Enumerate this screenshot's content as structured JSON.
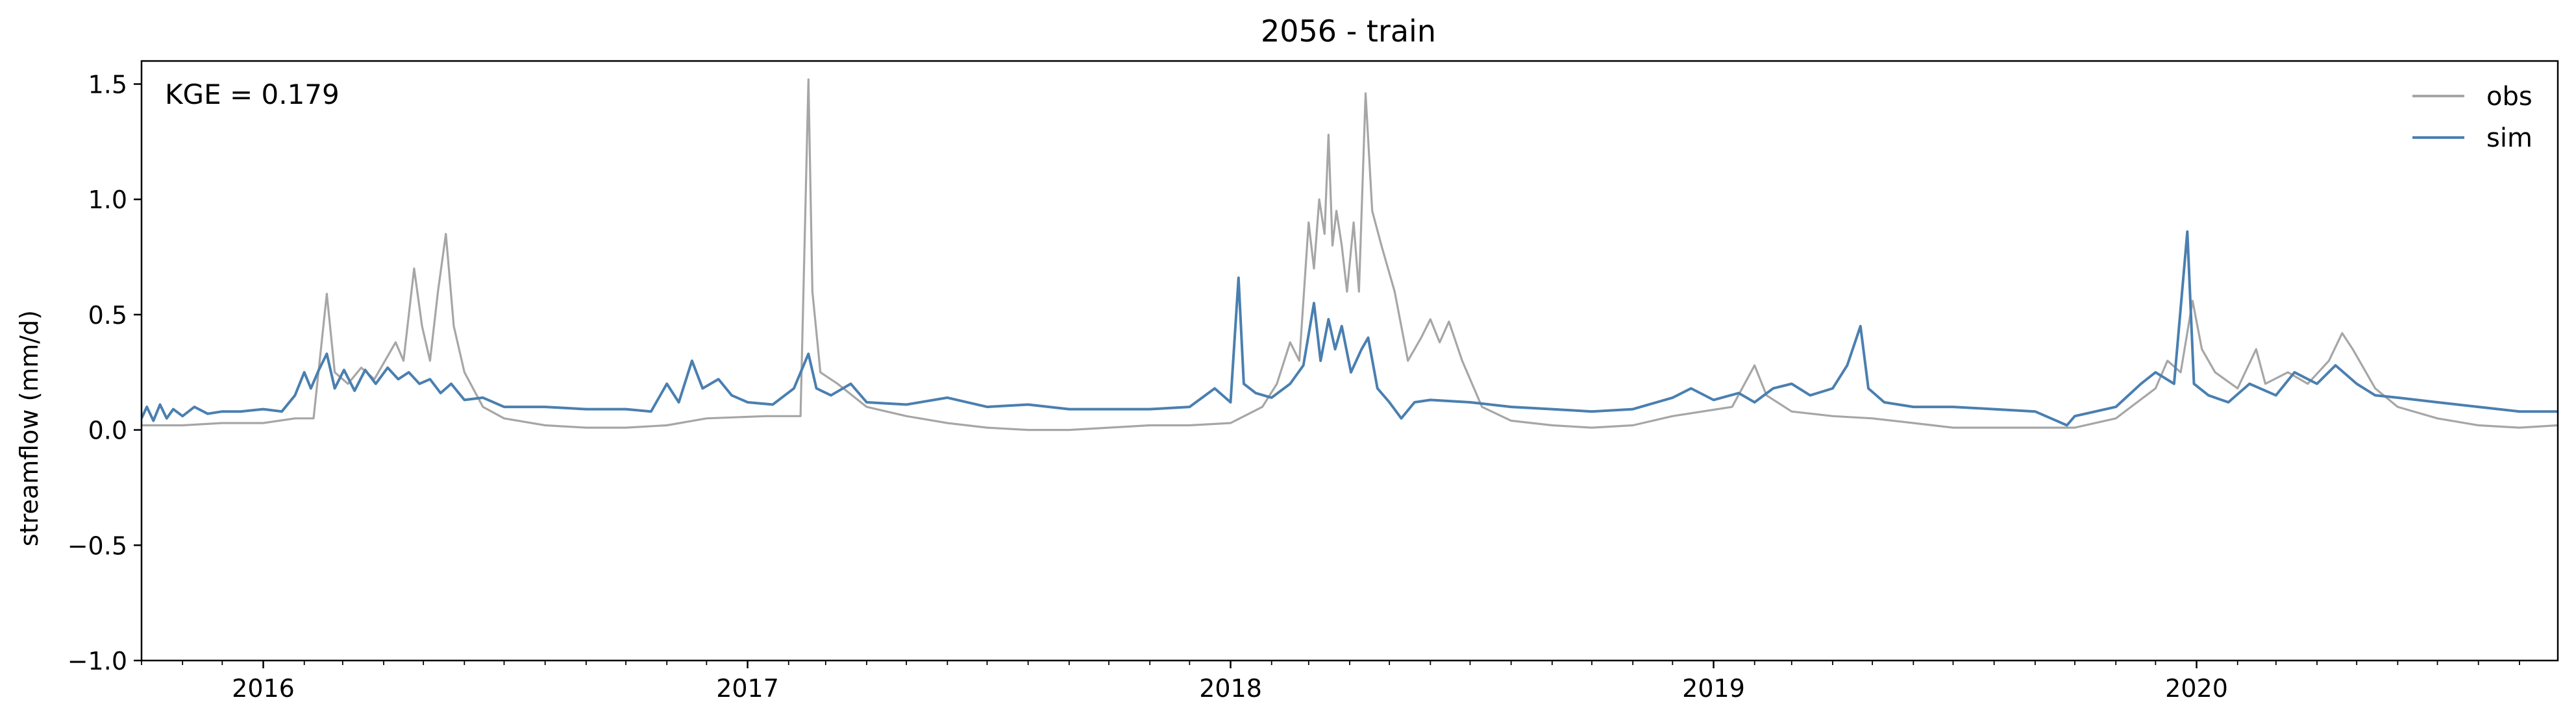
{
  "chart_data": {
    "type": "line",
    "title": "2056 - train",
    "xlabel": "",
    "ylabel": "streamflow (mm/d)",
    "annotation": "KGE = 0.179",
    "xlim": [
      "2015-10-01",
      "2020-09-30"
    ],
    "ylim": [
      -1.0,
      1.6
    ],
    "yticks": [
      -1.0,
      -0.5,
      0.0,
      0.5,
      1.0,
      1.5
    ],
    "ytick_labels": [
      "−1.0",
      "−0.5",
      "0.0",
      "0.5",
      "1.0",
      "1.5"
    ],
    "xticks_major": [
      "2016-01-01",
      "2017-01-01",
      "2018-01-01",
      "2019-01-01",
      "2020-01-01"
    ],
    "xtick_labels": [
      "2016",
      "2017",
      "2018",
      "2019",
      "2020"
    ],
    "xticks_minor": "monthly",
    "grid": false,
    "legend": {
      "position": "top-right",
      "entries": [
        "obs",
        "sim"
      ]
    },
    "colors": {
      "obs": "#a6a6a6",
      "sim": "#4a7fb0"
    },
    "series": [
      {
        "name": "obs",
        "color": "#a6a6a6",
        "points": [
          [
            "2015-10-01",
            0.02
          ],
          [
            "2015-11-01",
            0.02
          ],
          [
            "2015-12-01",
            0.03
          ],
          [
            "2016-01-01",
            0.03
          ],
          [
            "2016-01-25",
            0.05
          ],
          [
            "2016-02-08",
            0.05
          ],
          [
            "2016-02-18",
            0.59
          ],
          [
            "2016-02-24",
            0.25
          ],
          [
            "2016-03-05",
            0.2
          ],
          [
            "2016-03-15",
            0.27
          ],
          [
            "2016-03-25",
            0.22
          ],
          [
            "2016-04-02",
            0.3
          ],
          [
            "2016-04-10",
            0.38
          ],
          [
            "2016-04-16",
            0.3
          ],
          [
            "2016-04-24",
            0.7
          ],
          [
            "2016-04-30",
            0.45
          ],
          [
            "2016-05-06",
            0.3
          ],
          [
            "2016-05-12",
            0.6
          ],
          [
            "2016-05-18",
            0.85
          ],
          [
            "2016-05-24",
            0.45
          ],
          [
            "2016-06-01",
            0.25
          ],
          [
            "2016-06-15",
            0.1
          ],
          [
            "2016-07-01",
            0.05
          ],
          [
            "2016-08-01",
            0.02
          ],
          [
            "2016-09-01",
            0.01
          ],
          [
            "2016-10-01",
            0.01
          ],
          [
            "2016-11-01",
            0.02
          ],
          [
            "2016-12-01",
            0.05
          ],
          [
            "2017-01-15",
            0.06
          ],
          [
            "2017-02-10",
            0.06
          ],
          [
            "2017-02-16",
            1.52
          ],
          [
            "2017-02-19",
            0.6
          ],
          [
            "2017-02-25",
            0.25
          ],
          [
            "2017-03-10",
            0.2
          ],
          [
            "2017-04-01",
            0.1
          ],
          [
            "2017-05-01",
            0.06
          ],
          [
            "2017-06-01",
            0.03
          ],
          [
            "2017-07-01",
            0.01
          ],
          [
            "2017-08-01",
            0.0
          ],
          [
            "2017-09-01",
            0.0
          ],
          [
            "2017-10-01",
            0.01
          ],
          [
            "2017-11-01",
            0.02
          ],
          [
            "2017-12-01",
            0.02
          ],
          [
            "2018-01-01",
            0.03
          ],
          [
            "2018-01-25",
            0.1
          ],
          [
            "2018-02-05",
            0.2
          ],
          [
            "2018-02-15",
            0.38
          ],
          [
            "2018-02-22",
            0.3
          ],
          [
            "2018-03-01",
            0.9
          ],
          [
            "2018-03-05",
            0.7
          ],
          [
            "2018-03-09",
            1.0
          ],
          [
            "2018-03-13",
            0.85
          ],
          [
            "2018-03-16",
            1.28
          ],
          [
            "2018-03-19",
            0.8
          ],
          [
            "2018-03-22",
            0.95
          ],
          [
            "2018-03-26",
            0.8
          ],
          [
            "2018-03-30",
            0.6
          ],
          [
            "2018-04-04",
            0.9
          ],
          [
            "2018-04-08",
            0.6
          ],
          [
            "2018-04-13",
            1.46
          ],
          [
            "2018-04-18",
            0.95
          ],
          [
            "2018-04-25",
            0.8
          ],
          [
            "2018-05-05",
            0.6
          ],
          [
            "2018-05-15",
            0.3
          ],
          [
            "2018-05-25",
            0.4
          ],
          [
            "2018-06-01",
            0.48
          ],
          [
            "2018-06-08",
            0.38
          ],
          [
            "2018-06-15",
            0.47
          ],
          [
            "2018-06-25",
            0.3
          ],
          [
            "2018-07-10",
            0.1
          ],
          [
            "2018-08-01",
            0.04
          ],
          [
            "2018-09-01",
            0.02
          ],
          [
            "2018-10-01",
            0.01
          ],
          [
            "2018-11-01",
            0.02
          ],
          [
            "2018-12-01",
            0.06
          ],
          [
            "2019-01-15",
            0.1
          ],
          [
            "2019-02-01",
            0.28
          ],
          [
            "2019-02-10",
            0.15
          ],
          [
            "2019-03-01",
            0.08
          ],
          [
            "2019-04-01",
            0.06
          ],
          [
            "2019-05-01",
            0.05
          ],
          [
            "2019-06-01",
            0.03
          ],
          [
            "2019-07-01",
            0.01
          ],
          [
            "2019-08-01",
            0.01
          ],
          [
            "2019-09-01",
            0.01
          ],
          [
            "2019-10-01",
            0.01
          ],
          [
            "2019-11-01",
            0.05
          ],
          [
            "2019-12-01",
            0.18
          ],
          [
            "2019-12-10",
            0.3
          ],
          [
            "2019-12-20",
            0.25
          ],
          [
            "2019-12-29",
            0.56
          ],
          [
            "2020-01-05",
            0.35
          ],
          [
            "2020-01-15",
            0.25
          ],
          [
            "2020-02-01",
            0.18
          ],
          [
            "2020-02-15",
            0.35
          ],
          [
            "2020-02-22",
            0.2
          ],
          [
            "2020-03-10",
            0.25
          ],
          [
            "2020-03-25",
            0.2
          ],
          [
            "2020-04-10",
            0.3
          ],
          [
            "2020-04-20",
            0.42
          ],
          [
            "2020-04-28",
            0.35
          ],
          [
            "2020-05-15",
            0.18
          ],
          [
            "2020-06-01",
            0.1
          ],
          [
            "2020-07-01",
            0.05
          ],
          [
            "2020-08-01",
            0.02
          ],
          [
            "2020-09-01",
            0.01
          ],
          [
            "2020-09-30",
            0.02
          ]
        ]
      },
      {
        "name": "sim",
        "color": "#4a7fb0",
        "points": [
          [
            "2015-10-01",
            0.05
          ],
          [
            "2015-10-05",
            0.1
          ],
          [
            "2015-10-10",
            0.04
          ],
          [
            "2015-10-15",
            0.11
          ],
          [
            "2015-10-20",
            0.05
          ],
          [
            "2015-10-25",
            0.09
          ],
          [
            "2015-11-01",
            0.06
          ],
          [
            "2015-11-10",
            0.1
          ],
          [
            "2015-11-20",
            0.07
          ],
          [
            "2015-12-01",
            0.08
          ],
          [
            "2015-12-15",
            0.08
          ],
          [
            "2016-01-01",
            0.09
          ],
          [
            "2016-01-15",
            0.08
          ],
          [
            "2016-01-25",
            0.15
          ],
          [
            "2016-02-01",
            0.25
          ],
          [
            "2016-02-06",
            0.18
          ],
          [
            "2016-02-12",
            0.26
          ],
          [
            "2016-02-18",
            0.33
          ],
          [
            "2016-02-24",
            0.18
          ],
          [
            "2016-03-02",
            0.26
          ],
          [
            "2016-03-10",
            0.17
          ],
          [
            "2016-03-18",
            0.26
          ],
          [
            "2016-03-26",
            0.2
          ],
          [
            "2016-04-04",
            0.27
          ],
          [
            "2016-04-12",
            0.22
          ],
          [
            "2016-04-20",
            0.25
          ],
          [
            "2016-04-28",
            0.2
          ],
          [
            "2016-05-06",
            0.22
          ],
          [
            "2016-05-14",
            0.16
          ],
          [
            "2016-05-22",
            0.2
          ],
          [
            "2016-06-01",
            0.13
          ],
          [
            "2016-06-15",
            0.14
          ],
          [
            "2016-07-01",
            0.1
          ],
          [
            "2016-08-01",
            0.1
          ],
          [
            "2016-09-01",
            0.09
          ],
          [
            "2016-10-01",
            0.09
          ],
          [
            "2016-10-20",
            0.08
          ],
          [
            "2016-11-01",
            0.2
          ],
          [
            "2016-11-10",
            0.12
          ],
          [
            "2016-11-20",
            0.3
          ],
          [
            "2016-11-28",
            0.18
          ],
          [
            "2016-12-10",
            0.22
          ],
          [
            "2016-12-20",
            0.15
          ],
          [
            "2017-01-01",
            0.12
          ],
          [
            "2017-01-20",
            0.11
          ],
          [
            "2017-02-05",
            0.18
          ],
          [
            "2017-02-16",
            0.33
          ],
          [
            "2017-02-22",
            0.18
          ],
          [
            "2017-03-05",
            0.15
          ],
          [
            "2017-03-20",
            0.2
          ],
          [
            "2017-04-01",
            0.12
          ],
          [
            "2017-05-01",
            0.11
          ],
          [
            "2017-06-01",
            0.14
          ],
          [
            "2017-07-01",
            0.1
          ],
          [
            "2017-08-01",
            0.11
          ],
          [
            "2017-09-01",
            0.09
          ],
          [
            "2017-10-01",
            0.09
          ],
          [
            "2017-11-01",
            0.09
          ],
          [
            "2017-12-01",
            0.1
          ],
          [
            "2017-12-20",
            0.18
          ],
          [
            "2018-01-01",
            0.12
          ],
          [
            "2018-01-07",
            0.66
          ],
          [
            "2018-01-11",
            0.2
          ],
          [
            "2018-01-20",
            0.16
          ],
          [
            "2018-02-01",
            0.14
          ],
          [
            "2018-02-15",
            0.2
          ],
          [
            "2018-02-25",
            0.28
          ],
          [
            "2018-03-05",
            0.55
          ],
          [
            "2018-03-10",
            0.3
          ],
          [
            "2018-03-16",
            0.48
          ],
          [
            "2018-03-21",
            0.35
          ],
          [
            "2018-03-26",
            0.45
          ],
          [
            "2018-04-02",
            0.25
          ],
          [
            "2018-04-10",
            0.35
          ],
          [
            "2018-04-15",
            0.4
          ],
          [
            "2018-04-22",
            0.18
          ],
          [
            "2018-05-01",
            0.12
          ],
          [
            "2018-05-10",
            0.05
          ],
          [
            "2018-05-20",
            0.12
          ],
          [
            "2018-06-01",
            0.13
          ],
          [
            "2018-07-01",
            0.12
          ],
          [
            "2018-08-01",
            0.1
          ],
          [
            "2018-09-01",
            0.09
          ],
          [
            "2018-10-01",
            0.08
          ],
          [
            "2018-11-01",
            0.09
          ],
          [
            "2018-12-01",
            0.14
          ],
          [
            "2018-12-15",
            0.18
          ],
          [
            "2019-01-01",
            0.13
          ],
          [
            "2019-01-20",
            0.16
          ],
          [
            "2019-02-01",
            0.12
          ],
          [
            "2019-02-15",
            0.18
          ],
          [
            "2019-03-01",
            0.2
          ],
          [
            "2019-03-15",
            0.15
          ],
          [
            "2019-04-01",
            0.18
          ],
          [
            "2019-04-12",
            0.28
          ],
          [
            "2019-04-22",
            0.45
          ],
          [
            "2019-04-28",
            0.18
          ],
          [
            "2019-05-10",
            0.12
          ],
          [
            "2019-06-01",
            0.1
          ],
          [
            "2019-07-01",
            0.1
          ],
          [
            "2019-08-01",
            0.09
          ],
          [
            "2019-09-01",
            0.08
          ],
          [
            "2019-09-25",
            0.02
          ],
          [
            "2019-10-01",
            0.06
          ],
          [
            "2019-11-01",
            0.1
          ],
          [
            "2019-11-20",
            0.2
          ],
          [
            "2019-12-01",
            0.25
          ],
          [
            "2019-12-15",
            0.2
          ],
          [
            "2019-12-25",
            0.86
          ],
          [
            "2019-12-30",
            0.2
          ],
          [
            "2020-01-10",
            0.15
          ],
          [
            "2020-01-25",
            0.12
          ],
          [
            "2020-02-10",
            0.2
          ],
          [
            "2020-03-01",
            0.15
          ],
          [
            "2020-03-15",
            0.25
          ],
          [
            "2020-04-01",
            0.2
          ],
          [
            "2020-04-15",
            0.28
          ],
          [
            "2020-05-01",
            0.2
          ],
          [
            "2020-05-15",
            0.15
          ],
          [
            "2020-06-01",
            0.14
          ],
          [
            "2020-07-01",
            0.12
          ],
          [
            "2020-08-01",
            0.1
          ],
          [
            "2020-09-01",
            0.08
          ],
          [
            "2020-09-30",
            0.08
          ]
        ]
      }
    ]
  }
}
